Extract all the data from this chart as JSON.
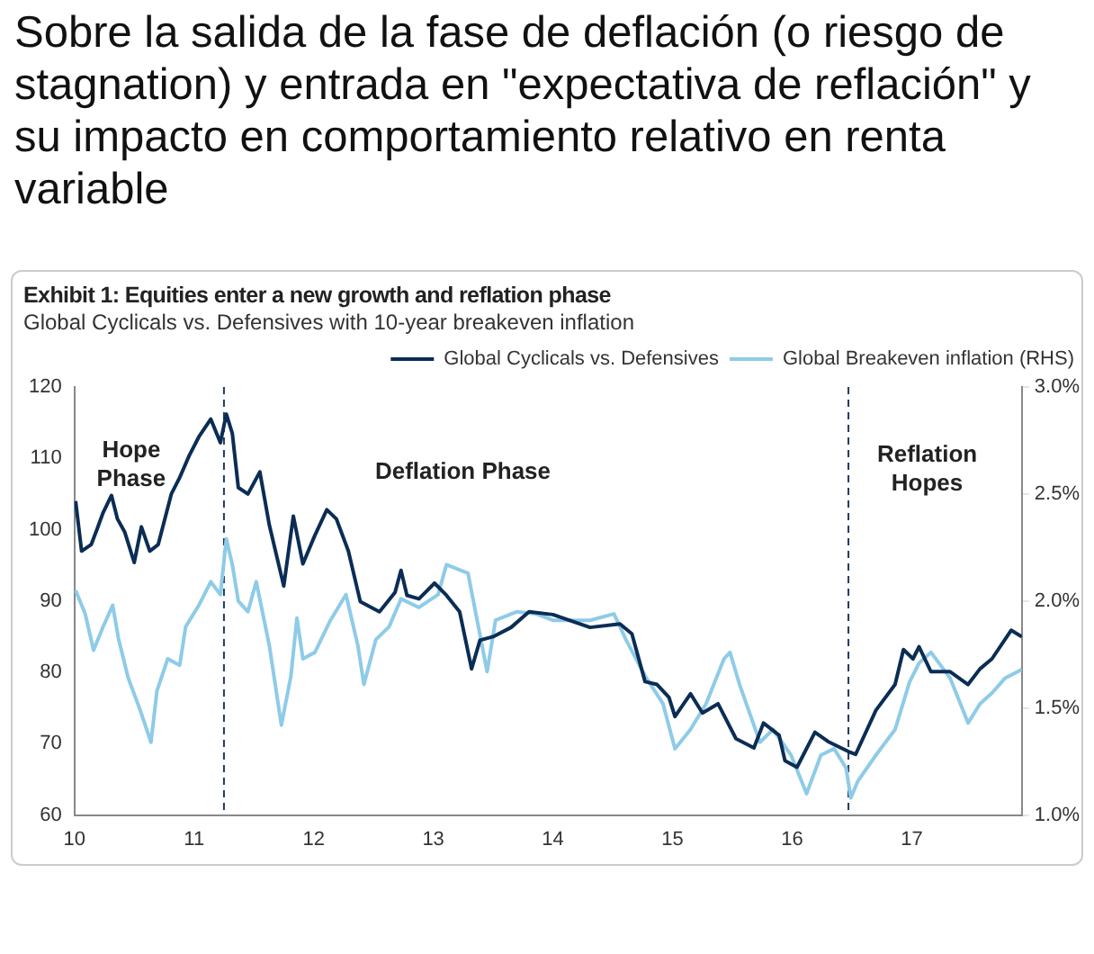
{
  "chart_data": {
    "type": "line",
    "title": "Sobre la salida de la fase de deflación (o riesgo de stagnation) y entrada en \"expectativa de reflación\" y su impacto en comportamiento relativo en renta variable",
    "subtitle": "Exhibit 1: Equities enter a new growth and reflation phase",
    "annotations": [
      "Global Cyclicals vs. Defensives with 10-year breakeven inflation",
      "Hope Phase",
      "Deflation Phase",
      "Reflation Hopes"
    ],
    "xlim": [
      10,
      17.92
    ],
    "xticks": [
      10,
      11,
      12,
      13,
      14,
      15,
      16,
      17
    ],
    "ylim": [
      60,
      120
    ],
    "yticks": [
      60,
      70,
      80,
      90,
      100,
      110,
      120
    ],
    "y2lim": [
      1,
      3
    ],
    "y2ticks": [
      {
        "value": 1,
        "label": "1.0%"
      },
      {
        "value": 1.5,
        "label": "1.5%"
      },
      {
        "value": 2,
        "label": "2.0%"
      },
      {
        "value": 2.5,
        "label": "2.5%"
      },
      {
        "value": 3,
        "label": "3.0%"
      }
    ],
    "grid": false,
    "legend": "top",
    "marker": "none",
    "ref_lines": [
      {
        "axis": "x",
        "value": 11.25,
        "label": null,
        "color": "#1f3b63",
        "line_style": "dashed"
      },
      {
        "axis": "x",
        "value": 16.47,
        "label": null,
        "color": "#1f3b63",
        "line_style": "dashed"
      }
    ],
    "series": [
      {
        "name": "Global Cyclicals vs. Defensives",
        "color": "#0b2d55",
        "x": [
          10.01,
          10.06,
          10.14,
          10.19,
          10.24,
          10.31,
          10.36,
          10.42,
          10.5,
          10.56,
          10.63,
          10.7,
          10.81,
          10.88,
          10.96,
          11.04,
          11.14,
          11.22,
          11.27,
          11.32,
          11.37,
          11.45,
          11.55,
          11.63,
          11.75,
          11.83,
          11.91,
          12.01,
          12.11,
          12.19,
          12.29,
          12.39,
          12.55,
          12.68,
          12.73,
          12.78,
          12.88,
          13.01,
          13.11,
          13.22,
          13.32,
          13.39,
          13.5,
          13.65,
          13.8,
          14,
          14.31,
          14.56,
          14.66,
          14.77,
          14.87,
          14.97,
          15.02,
          15.15,
          15.25,
          15.38,
          15.53,
          15.68,
          15.76,
          15.89,
          15.94,
          16.04,
          16.19,
          16.3,
          16.47,
          16.53,
          16.7,
          16.86,
          16.93,
          17.01,
          17.06,
          17.16,
          17.32,
          17.47,
          17.57,
          17.67,
          17.83,
          17.92
        ],
        "values": [
          104,
          97,
          97.9,
          100.1,
          102.4,
          104.8,
          101.5,
          99.7,
          95.4,
          100.4,
          97,
          97.9,
          105,
          107.3,
          110.4,
          113,
          115.5,
          112.2,
          116.2,
          113.5,
          105.9,
          105,
          108.1,
          100.6,
          92.1,
          101.9,
          95.2,
          99.2,
          102.8,
          101.5,
          97,
          89.9,
          88.5,
          91.2,
          94.3,
          90.8,
          90.3,
          92.5,
          90.8,
          88.5,
          80.5,
          84.5,
          85,
          86.3,
          88.5,
          88.1,
          86.3,
          86.8,
          85.4,
          78.7,
          78.3,
          76.5,
          73.8,
          77,
          74.3,
          75.6,
          70.7,
          69.4,
          72.9,
          71.2,
          67.6,
          66.7,
          71.6,
          70.3,
          68.9,
          68.5,
          74.7,
          78.3,
          83.2,
          81.9,
          83.6,
          80.1,
          80.1,
          78.3,
          80.5,
          81.9,
          85.9,
          85
        ]
      },
      {
        "name": "Global Breakeven inflation (RHS)",
        "color": "#8ecbe8",
        "axis": "y2",
        "x": [
          10.01,
          10.09,
          10.16,
          10.24,
          10.32,
          10.37,
          10.45,
          10.55,
          10.64,
          10.69,
          10.78,
          10.88,
          10.93,
          11.04,
          11.14,
          11.22,
          11.27,
          11.32,
          11.37,
          11.45,
          11.52,
          11.63,
          11.73,
          11.81,
          11.86,
          11.91,
          12.01,
          12.14,
          12.27,
          12.37,
          12.42,
          12.52,
          12.63,
          12.73,
          12.88,
          13.04,
          13.11,
          13.29,
          13.45,
          13.52,
          13.7,
          13.86,
          14,
          14.31,
          14.51,
          14.61,
          14.77,
          14.92,
          15.02,
          15.15,
          15.28,
          15.43,
          15.48,
          15.56,
          15.73,
          15.84,
          15.99,
          16.12,
          16.24,
          16.35,
          16.45,
          16.49,
          16.55,
          16.7,
          16.86,
          16.98,
          17.06,
          17.16,
          17.32,
          17.47,
          17.57,
          17.67,
          17.78,
          17.92
        ],
        "values": [
          2.05,
          1.94,
          1.77,
          1.88,
          1.98,
          1.82,
          1.64,
          1.49,
          1.34,
          1.58,
          1.73,
          1.7,
          1.88,
          1.98,
          2.09,
          2.03,
          2.29,
          2.17,
          2,
          1.95,
          2.09,
          1.79,
          1.42,
          1.65,
          1.92,
          1.73,
          1.76,
          1.91,
          2.03,
          1.79,
          1.61,
          1.82,
          1.88,
          2.01,
          1.97,
          2.03,
          2.17,
          2.13,
          1.67,
          1.91,
          1.95,
          1.94,
          1.91,
          1.91,
          1.94,
          1.82,
          1.65,
          1.52,
          1.31,
          1.4,
          1.52,
          1.73,
          1.76,
          1.61,
          1.34,
          1.4,
          1.28,
          1.1,
          1.28,
          1.31,
          1.22,
          1.08,
          1.16,
          1.28,
          1.4,
          1.62,
          1.71,
          1.76,
          1.64,
          1.43,
          1.52,
          1.57,
          1.64,
          1.68
        ]
      }
    ]
  }
}
